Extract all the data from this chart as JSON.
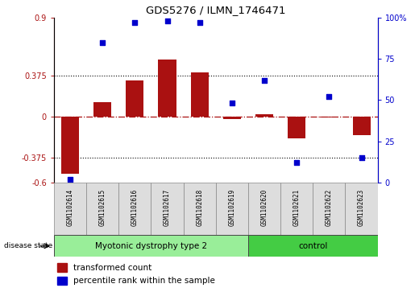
{
  "title": "GDS5276 / ILMN_1746471",
  "samples": [
    "GSM1102614",
    "GSM1102615",
    "GSM1102616",
    "GSM1102617",
    "GSM1102618",
    "GSM1102619",
    "GSM1102620",
    "GSM1102621",
    "GSM1102622",
    "GSM1102623"
  ],
  "bar_values": [
    -0.52,
    0.13,
    0.33,
    0.52,
    0.4,
    -0.02,
    0.02,
    -0.2,
    -0.01,
    -0.17
  ],
  "dot_values": [
    2,
    85,
    97,
    98,
    97,
    48,
    62,
    12,
    52,
    15
  ],
  "ylim_left": [
    -0.6,
    0.9
  ],
  "ylim_right": [
    0,
    100
  ],
  "yticks_left": [
    -0.6,
    -0.375,
    0,
    0.375,
    0.9
  ],
  "yticks_right": [
    0,
    25,
    50,
    75,
    100
  ],
  "ytick_labels_left": [
    "-0.6",
    "-0.375",
    "0",
    "0.375",
    "0.9"
  ],
  "ytick_labels_right": [
    "0",
    "25",
    "50",
    "75",
    "100%"
  ],
  "dotted_lines": [
    -0.375,
    0.375
  ],
  "bar_color": "#AA1111",
  "dot_color": "#0000CC",
  "group1_label": "Myotonic dystrophy type 2",
  "group1_color": "#99EE99",
  "group1_samples": 6,
  "group2_label": "control",
  "group2_color": "#44CC44",
  "group2_samples": 4,
  "disease_state_label": "disease state",
  "legend_bar_label": "transformed count",
  "legend_dot_label": "percentile rank within the sample",
  "bar_width": 0.55,
  "sample_box_color": "#DDDDDD",
  "sample_box_edge": "#888888"
}
